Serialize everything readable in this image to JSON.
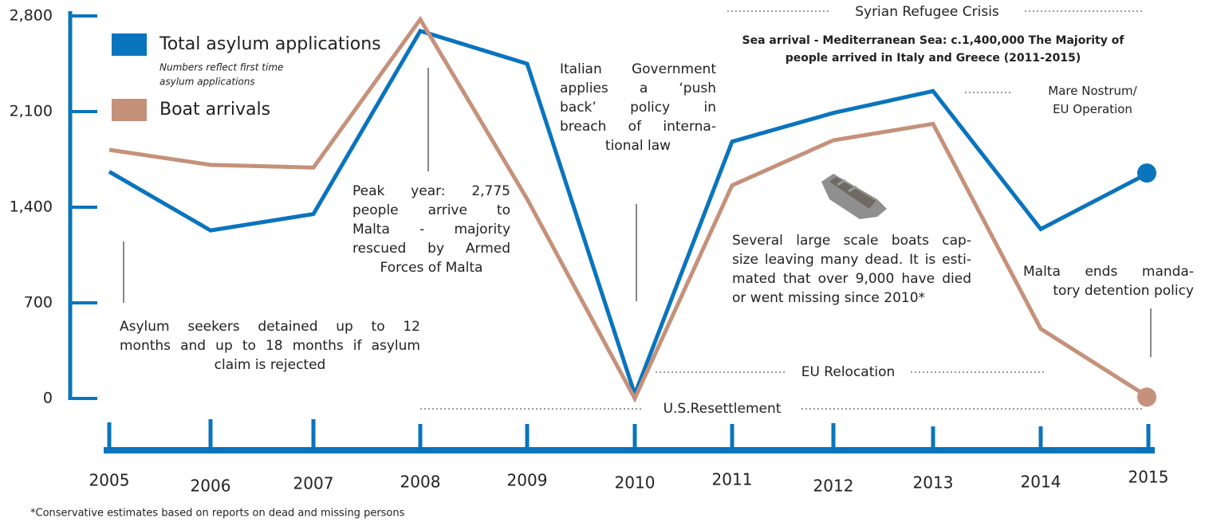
{
  "chart_data": {
    "type": "line",
    "categories": [
      "2005",
      "2006",
      "2007",
      "2008",
      "2009",
      "2010",
      "2011",
      "2012",
      "2013",
      "2014",
      "2015"
    ],
    "series": [
      {
        "name": "Total asylum applications",
        "color": "#0a74bd",
        "values": [
          1660,
          1230,
          1350,
          2690,
          2450,
          30,
          1880,
          2090,
          2250,
          1240,
          1650
        ]
      },
      {
        "name": "Boat arrivals",
        "color": "#c5917a",
        "values": [
          1820,
          1710,
          1690,
          2775,
          1460,
          0,
          1560,
          1890,
          2010,
          510,
          10
        ]
      }
    ],
    "legend_note": [
      "Numbers reflect first time",
      "asylum applications"
    ],
    "ylim": [
      0,
      2800
    ],
    "yticks": [
      0,
      {
        "value": 700,
        "label": "700"
      },
      {
        "value": 1400,
        "label": "1,400"
      },
      {
        "value": 2100,
        "label": "2,100"
      },
      {
        "value": 2800,
        "label": "2,800"
      }
    ],
    "annotations": [
      {
        "lines": [
          "Asylum seekers detained up to 12",
          "months and up to 18 months if asylum",
          "claim is rejected"
        ]
      },
      {
        "lines": [
          "Peak year: 2,775",
          "people arrive to",
          "Malta - majority",
          "rescued by Armed",
          "Forces of Malta"
        ]
      },
      {
        "lines": [
          "Italian Government",
          "applies a ‘push",
          "back’ policy in",
          "breach of interna-",
          "tional law"
        ]
      },
      {
        "lines": [
          "Several large scale boats cap-",
          "size leaving many dead. It is esti-",
          "mated that over 9,000 have died",
          "or went missing since 2010*"
        ]
      },
      {
        "lines": [
          "Malta ends manda-",
          "tory detention policy"
        ]
      },
      {
        "lines": [
          "Syrian Refugee Crisis"
        ]
      },
      {
        "lines": [
          "Sea arrival - Mediterranean Sea: c.1,400,000 The Majority of",
          "people arrived in Italy and Greece (2011-2015)"
        ]
      },
      {
        "lines": [
          "Mare Nostrum/",
          "EU Operation"
        ]
      },
      {
        "lines": [
          "EU Relocation"
        ]
      },
      {
        "lines": [
          "U.S.Resettlement"
        ]
      }
    ],
    "footnote": "*Conservative estimates based on reports on dead and missing persons"
  }
}
